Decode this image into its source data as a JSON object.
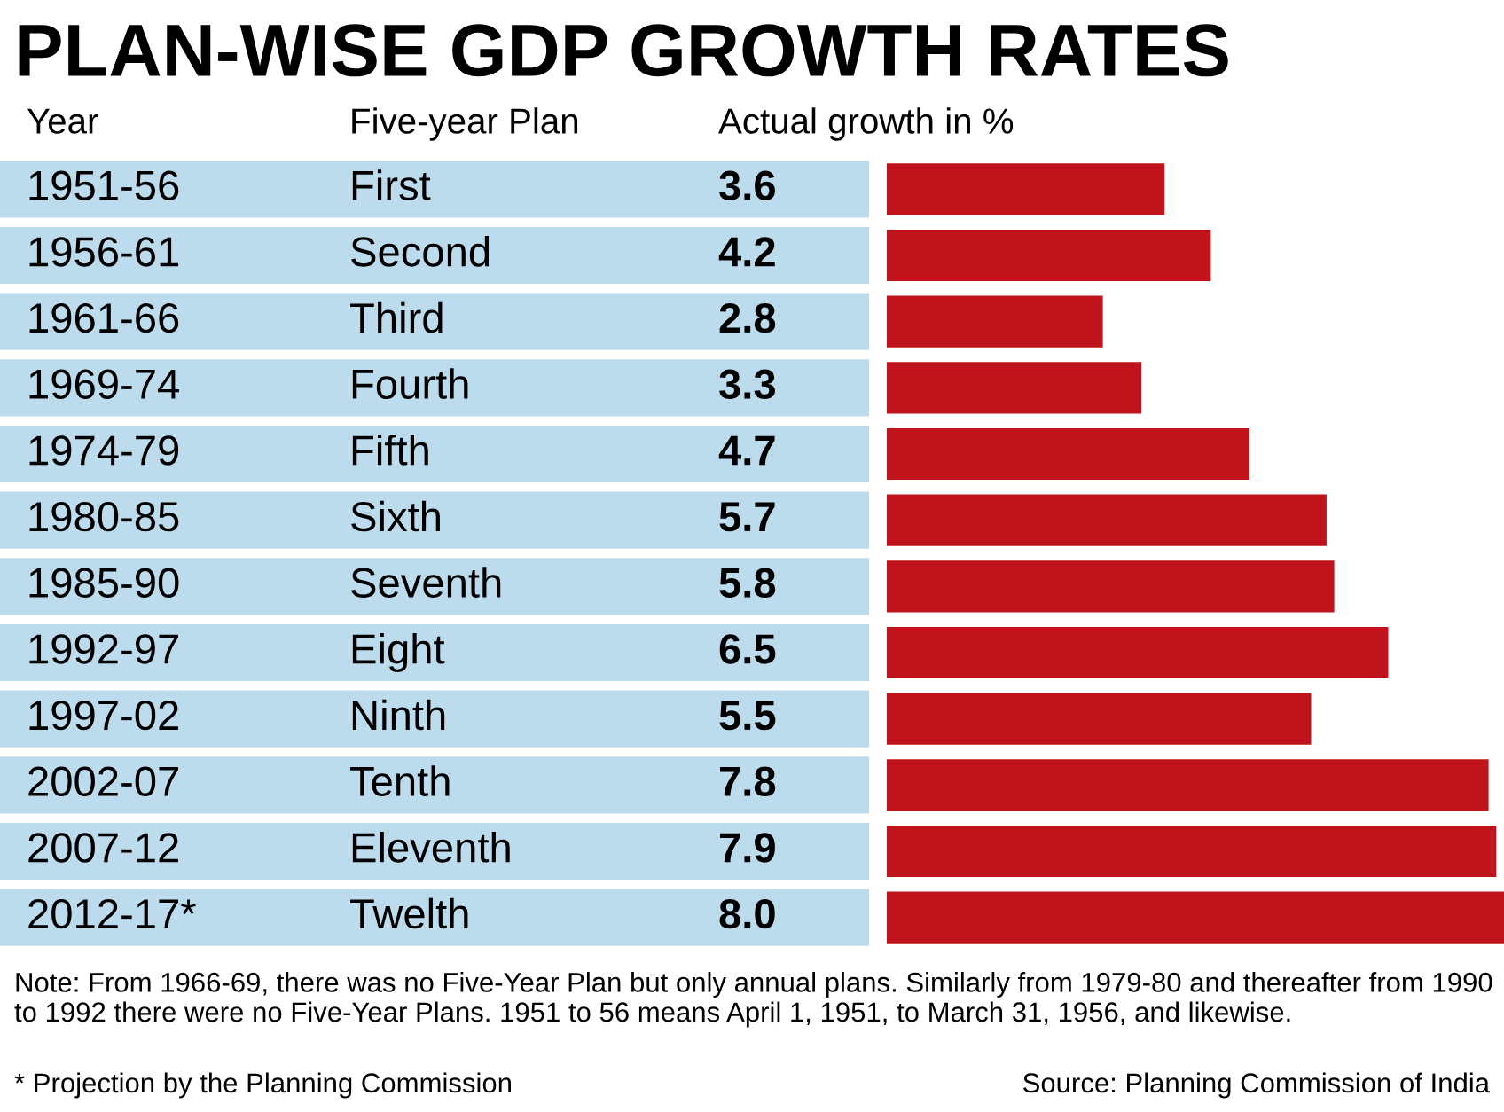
{
  "chart_data": {
    "type": "bar",
    "orientation": "horizontal",
    "title": "PLAN-WISE GDP GROWTH RATES",
    "categories": [
      "1951-56",
      "1956-61",
      "1961-66",
      "1969-74",
      "1974-79",
      "1980-85",
      "1985-90",
      "1992-97",
      "1997-02",
      "2002-07",
      "2007-12",
      "2012-17*"
    ],
    "values": [
      3.6,
      4.2,
      2.8,
      3.3,
      4.7,
      5.7,
      5.8,
      6.5,
      5.5,
      7.8,
      7.9,
      8.0
    ],
    "value_labels": [
      "3.6",
      "4.2",
      "2.8",
      "3.3",
      "4.7",
      "5.7",
      "5.8",
      "6.5",
      "5.5",
      "7.8",
      "7.9",
      "8.0"
    ],
    "color": "#c0141c",
    "annotations": [
      "Year",
      "Five-year Plan",
      "Actual growth in %",
      "Note: From 1966-69, there was no Five-Year Plan but only annual plans. Similarly from 1979-80 and thereafter from 1990 to 1992 there were no Five-Year Plans. 1951 to 56 means April 1, 1951, to March 31, 1956, and likewise.",
      "* Projection by the Planning Commission",
      "Source: Planning Commission of India",
      "First",
      "Second",
      "Third",
      "Fourth",
      "Fifth",
      "Sixth",
      "Seventh",
      "Eight",
      "Ninth",
      "Tenth",
      "Eleventh",
      "Twelth"
    ]
  }
}
